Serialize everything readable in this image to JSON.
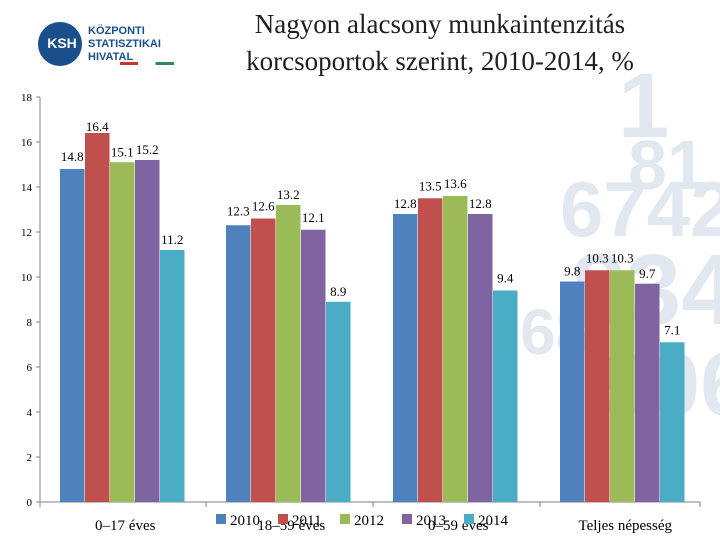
{
  "header": {
    "logo_mark": "KSH",
    "logo_lines": [
      "KÖZPONTI",
      "STATISZTIKAI",
      "HIVATAL"
    ],
    "title_line1": "Nagyon alacsony munkaintenzitás",
    "title_line2": "korcsoportok szerint, 2010-2014, %"
  },
  "chart_data": {
    "type": "bar",
    "title": "Nagyon alacsony munkaintenzitás korcsoportok szerint, 2010-2014, %",
    "categories": [
      "0–17 éves",
      "18–59 éves",
      "0–59 éves",
      "Teljes népesség"
    ],
    "series": [
      {
        "name": "2010",
        "color": "#4f81bd",
        "values": [
          14.8,
          12.3,
          12.8,
          9.8
        ]
      },
      {
        "name": "2011",
        "color": "#c0504d",
        "values": [
          16.4,
          12.6,
          13.5,
          10.3
        ]
      },
      {
        "name": "2012",
        "color": "#9bbb59",
        "values": [
          15.1,
          13.2,
          13.6,
          10.3
        ]
      },
      {
        "name": "2013",
        "color": "#8064a2",
        "values": [
          15.2,
          12.1,
          12.8,
          9.7
        ]
      },
      {
        "name": "2014",
        "color": "#4bacc6",
        "values": [
          11.2,
          8.9,
          9.4,
          7.1
        ]
      }
    ],
    "ylim": [
      0,
      18
    ],
    "yticks": [
      0,
      2,
      4,
      6,
      8,
      10,
      12,
      14,
      16,
      18
    ],
    "grid": false,
    "legend": "bottom"
  }
}
